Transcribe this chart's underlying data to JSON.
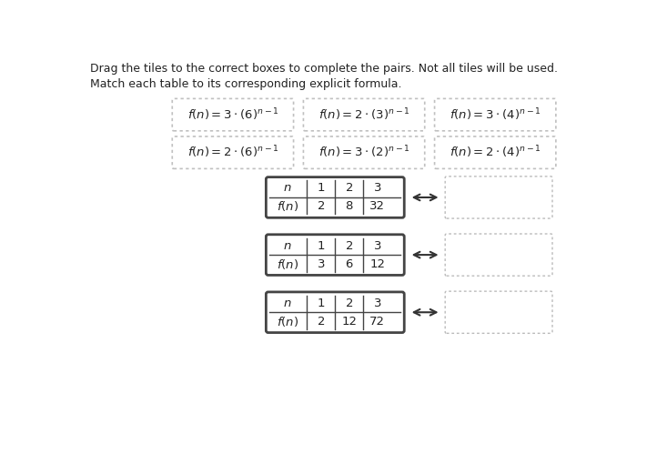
{
  "instruction_line1": "Drag the tiles to the correct boxes to complete the pairs. Not all tiles will be used.",
  "instruction_line2": "Match each table to its corresponding explicit formula.",
  "tile_latex": [
    "$f(n) = 3 \\cdot (6)^{n-1}$",
    "$f(n) = 2 \\cdot (3)^{n-1}$",
    "$f(n) = 3 \\cdot (4)^{n-1}$",
    "$f(n) = 2 \\cdot (6)^{n-1}$",
    "$f(n) = 3 \\cdot (2)^{n-1}$",
    "$f(n) = 2 \\cdot (4)^{n-1}$"
  ],
  "tables": [
    {
      "n": [
        1,
        2,
        3
      ],
      "fn": [
        2,
        8,
        32
      ]
    },
    {
      "n": [
        1,
        2,
        3
      ],
      "fn": [
        3,
        6,
        12
      ]
    },
    {
      "n": [
        1,
        2,
        3
      ],
      "fn": [
        2,
        12,
        72
      ]
    }
  ],
  "bg_color": "#ffffff",
  "text_color": "#222222",
  "tile_border_color": "#bbbbbb",
  "table_border_color": "#333333",
  "answer_border_color": "#bbbbbb"
}
